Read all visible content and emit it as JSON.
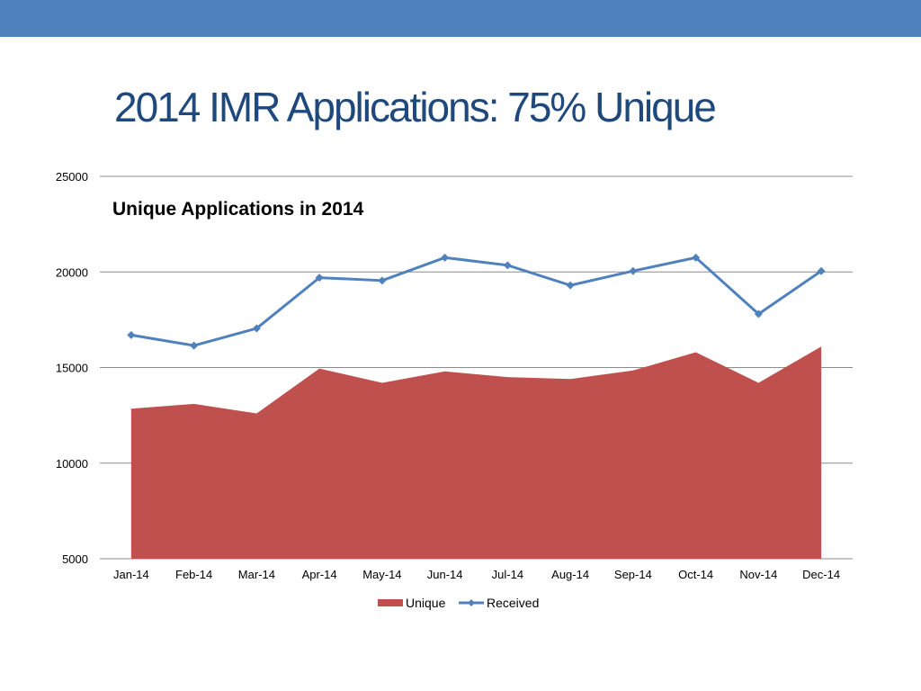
{
  "slide": {
    "title": "2014 IMR Applications: 75% Unique",
    "band_color": "#4f81bd"
  },
  "chart_data": {
    "type": "area",
    "title": "Unique Applications in 2014",
    "categories": [
      "Jan-14",
      "Feb-14",
      "Mar-14",
      "Apr-14",
      "May-14",
      "Jun-14",
      "Jul-14",
      "Aug-14",
      "Sep-14",
      "Oct-14",
      "Nov-14",
      "Dec-14"
    ],
    "series": [
      {
        "name": "Unique",
        "type": "area",
        "color": "#c0504d",
        "values": [
          12850,
          13100,
          12600,
          14950,
          14200,
          14800,
          14500,
          14400,
          14850,
          15800,
          14200,
          16100
        ]
      },
      {
        "name": "Received",
        "type": "line",
        "color": "#4f81bd",
        "marker": "diamond",
        "values": [
          16700,
          16150,
          17050,
          19700,
          19550,
          20750,
          20350,
          19300,
          20050,
          20750,
          17800,
          20050
        ]
      }
    ],
    "ylim": [
      5000,
      25000
    ],
    "yticks": [
      5000,
      10000,
      15000,
      20000,
      25000
    ],
    "grid": true,
    "legend": "bottom"
  }
}
